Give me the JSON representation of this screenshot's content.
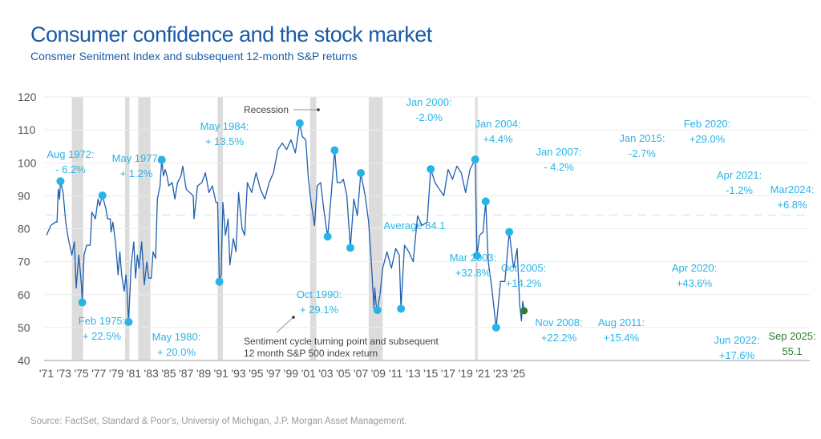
{
  "title": "Consumer confidence and the stock market",
  "subtitle": "Consmer Senitment Index and subsequent 12-month S&P returns",
  "source": "Source: FactSet, Standard & Poor's, Universiy of Michigan, J.P. Morgan Asset Management.",
  "colors": {
    "line": "#1f5fae",
    "accent": "#29b4e8",
    "latest": "#2e7d32",
    "recession": "#dcdcdc",
    "title": "#1a5ba6"
  },
  "chart_data": {
    "type": "line",
    "title": "Consumer confidence and the stock market",
    "ylim": [
      40,
      120
    ],
    "yticks": [
      40,
      50,
      60,
      70,
      80,
      90,
      100,
      110,
      120
    ],
    "xlim": [
      1971,
      2026
    ],
    "xticks": [
      "'71",
      "'73",
      "'75",
      "'77",
      "'79",
      "'81",
      "'83",
      "'85",
      "'87",
      "'89",
      "'91",
      "'93",
      "'95",
      "'97",
      "'99",
      "'01",
      "'03",
      "'05",
      "'07",
      "'09",
      "'11",
      "'13",
      "'15",
      "'17",
      "'19",
      "'21",
      "'23",
      "'25"
    ],
    "grid": true,
    "average": {
      "value": 84.1,
      "label": "Average 84.1"
    },
    "recession_label": "Recession",
    "note": [
      "Sentiment cycle turning point and subsequent",
      "12 month S&P 500 index return"
    ],
    "recessions": [
      [
        1973.9,
        1975.2
      ],
      [
        1980.0,
        1980.5
      ],
      [
        1981.5,
        1982.9
      ],
      [
        1990.6,
        1991.2
      ],
      [
        2001.2,
        2001.9
      ],
      [
        2007.9,
        2009.5
      ],
      [
        2020.1,
        2020.3
      ]
    ],
    "series": [
      {
        "name": "Consumer Sentiment Index",
        "points": [
          [
            1971.0,
            78
          ],
          [
            1971.5,
            81
          ],
          [
            1972.0,
            82
          ],
          [
            1972.2,
            82
          ],
          [
            1972.35,
            92
          ],
          [
            1972.5,
            89
          ],
          [
            1972.6,
            94.4
          ],
          [
            1972.9,
            91
          ],
          [
            1973.2,
            82
          ],
          [
            1973.5,
            77
          ],
          [
            1973.9,
            72
          ],
          [
            1974.2,
            76
          ],
          [
            1974.4,
            62
          ],
          [
            1974.7,
            72
          ],
          [
            1975.0,
            63
          ],
          [
            1975.1,
            57.6
          ],
          [
            1975.3,
            72
          ],
          [
            1975.6,
            75
          ],
          [
            1976.0,
            75
          ],
          [
            1976.2,
            85
          ],
          [
            1976.6,
            83
          ],
          [
            1976.9,
            89
          ],
          [
            1977.1,
            87
          ],
          [
            1977.4,
            90.1
          ],
          [
            1977.8,
            86
          ],
          [
            1978.0,
            83
          ],
          [
            1978.3,
            83
          ],
          [
            1978.4,
            79
          ],
          [
            1978.6,
            82
          ],
          [
            1978.9,
            76
          ],
          [
            1979.0,
            73
          ],
          [
            1979.2,
            66
          ],
          [
            1979.4,
            73
          ],
          [
            1979.6,
            66
          ],
          [
            1979.9,
            61
          ],
          [
            1980.1,
            66
          ],
          [
            1980.2,
            62
          ],
          [
            1980.4,
            51.7
          ],
          [
            1980.7,
            69
          ],
          [
            1981.0,
            76
          ],
          [
            1981.2,
            65
          ],
          [
            1981.4,
            72
          ],
          [
            1981.6,
            68
          ],
          [
            1981.9,
            76
          ],
          [
            1982.2,
            63
          ],
          [
            1982.5,
            70
          ],
          [
            1982.7,
            65
          ],
          [
            1983.0,
            65
          ],
          [
            1983.2,
            73
          ],
          [
            1983.5,
            71
          ],
          [
            1983.7,
            89
          ],
          [
            1984.0,
            93
          ],
          [
            1984.2,
            100.9
          ],
          [
            1984.4,
            96
          ],
          [
            1984.6,
            98
          ],
          [
            1984.8,
            96
          ],
          [
            1985.0,
            93
          ],
          [
            1985.4,
            94
          ],
          [
            1985.7,
            89
          ],
          [
            1986.0,
            94
          ],
          [
            1986.4,
            96
          ],
          [
            1986.6,
            99
          ],
          [
            1987.0,
            92
          ],
          [
            1987.4,
            91
          ],
          [
            1987.8,
            90
          ],
          [
            1987.9,
            83
          ],
          [
            1988.3,
            93
          ],
          [
            1988.8,
            94
          ],
          [
            1989.2,
            97
          ],
          [
            1989.6,
            91
          ],
          [
            1990.0,
            93
          ],
          [
            1990.4,
            88
          ],
          [
            1990.6,
            88
          ],
          [
            1990.8,
            63.9
          ],
          [
            1991.0,
            66
          ],
          [
            1991.2,
            88
          ],
          [
            1991.5,
            78
          ],
          [
            1991.8,
            83
          ],
          [
            1992.0,
            69
          ],
          [
            1992.4,
            77
          ],
          [
            1992.7,
            73
          ],
          [
            1993.0,
            91
          ],
          [
            1993.4,
            80
          ],
          [
            1993.7,
            78
          ],
          [
            1994.0,
            94
          ],
          [
            1994.5,
            91
          ],
          [
            1995.0,
            97
          ],
          [
            1995.5,
            92
          ],
          [
            1996.0,
            89
          ],
          [
            1996.5,
            94
          ],
          [
            1997.0,
            97
          ],
          [
            1997.5,
            104
          ],
          [
            1998.0,
            106
          ],
          [
            1998.5,
            104
          ],
          [
            1999.0,
            107
          ],
          [
            1999.5,
            103
          ],
          [
            2000.0,
            112.0
          ],
          [
            2000.3,
            108
          ],
          [
            2000.7,
            107
          ],
          [
            2001.0,
            95
          ],
          [
            2001.3,
            88
          ],
          [
            2001.7,
            81
          ],
          [
            2002.0,
            93
          ],
          [
            2002.4,
            94
          ],
          [
            2002.8,
            85
          ],
          [
            2003.2,
            77.6
          ],
          [
            2003.6,
            90
          ],
          [
            2004.0,
            103.8
          ],
          [
            2004.3,
            94
          ],
          [
            2004.7,
            94
          ],
          [
            2005.0,
            95
          ],
          [
            2005.4,
            90
          ],
          [
            2005.8,
            74.2
          ],
          [
            2006.2,
            89
          ],
          [
            2006.6,
            84
          ],
          [
            2007.0,
            96.9
          ],
          [
            2007.5,
            90
          ],
          [
            2007.9,
            82
          ],
          [
            2008.2,
            70
          ],
          [
            2008.5,
            56
          ],
          [
            2008.6,
            62
          ],
          [
            2008.75,
            57
          ],
          [
            2008.9,
            55.3
          ],
          [
            2009.2,
            60
          ],
          [
            2009.5,
            68
          ],
          [
            2010.0,
            73
          ],
          [
            2010.5,
            68
          ],
          [
            2011.0,
            74
          ],
          [
            2011.4,
            72
          ],
          [
            2011.6,
            55.7
          ],
          [
            2012.0,
            75
          ],
          [
            2012.5,
            73
          ],
          [
            2013.0,
            70
          ],
          [
            2013.5,
            84
          ],
          [
            2014.0,
            81
          ],
          [
            2014.6,
            82
          ],
          [
            2015.0,
            98.1
          ],
          [
            2015.5,
            94
          ],
          [
            2016.0,
            92
          ],
          [
            2016.5,
            90
          ],
          [
            2017.0,
            98
          ],
          [
            2017.5,
            95
          ],
          [
            2018.0,
            99
          ],
          [
            2018.5,
            97
          ],
          [
            2019.0,
            91
          ],
          [
            2019.5,
            98
          ],
          [
            2020.1,
            101.0
          ],
          [
            2020.3,
            71.8
          ],
          [
            2020.6,
            78
          ],
          [
            2021.0,
            79
          ],
          [
            2021.3,
            88.3
          ],
          [
            2021.6,
            70
          ],
          [
            2022.0,
            62
          ],
          [
            2022.5,
            50.0
          ],
          [
            2023.0,
            64
          ],
          [
            2023.5,
            64
          ],
          [
            2024.0,
            79.0
          ],
          [
            2024.5,
            68
          ],
          [
            2024.9,
            74
          ],
          [
            2025.2,
            57
          ],
          [
            2025.4,
            52
          ],
          [
            2025.55,
            58
          ],
          [
            2025.7,
            55.1
          ]
        ]
      }
    ],
    "annotations": [
      {
        "date": 1972.6,
        "value": 94.4,
        "lines": [
          "Aug 1972:",
          "- 6.2%"
        ]
      },
      {
        "date": 1975.1,
        "value": 57.6,
        "lines": [
          "Feb 1975:",
          "+ 22.5%"
        ]
      },
      {
        "date": 1977.4,
        "value": 90.1,
        "lines": [
          "May 1977:",
          "+ 1.2%"
        ]
      },
      {
        "date": 1980.4,
        "value": 51.7,
        "lines": [
          "May 1980:",
          "+ 20.0%"
        ]
      },
      {
        "date": 1984.2,
        "value": 100.9,
        "lines": [
          "May 1984:",
          "+ 13.5%"
        ]
      },
      {
        "date": 1990.8,
        "value": 63.9,
        "lines": [
          "Oct 1990:",
          "+ 29.1%"
        ]
      },
      {
        "date": 2000.0,
        "value": 112.0,
        "lines": [
          "Jan 2000:",
          "-2.0%"
        ]
      },
      {
        "date": 2003.2,
        "value": 77.6,
        "lines": [
          "Mar 2003:",
          "+32.8%"
        ]
      },
      {
        "date": 2004.0,
        "value": 103.8,
        "lines": [
          "Jan 2004:",
          "+4.4%"
        ]
      },
      {
        "date": 2005.8,
        "value": 74.2,
        "lines": [
          "Oct 2005:",
          "+14.2%"
        ]
      },
      {
        "date": 2007.0,
        "value": 96.9,
        "lines": [
          "Jan 2007:",
          "- 4.2%"
        ]
      },
      {
        "date": 2008.9,
        "value": 55.3,
        "lines": [
          "Nov 2008:",
          "+22.2%"
        ]
      },
      {
        "date": 2011.6,
        "value": 55.7,
        "lines": [
          "Aug 2011:",
          "+15.4%"
        ]
      },
      {
        "date": 2015.0,
        "value": 98.1,
        "lines": [
          "Jan 2015:",
          "-2.7%"
        ]
      },
      {
        "date": 2020.1,
        "value": 101.0,
        "lines": [
          "Feb 2020:",
          "+29.0%"
        ]
      },
      {
        "date": 2020.3,
        "value": 71.8,
        "lines": [
          "Apr 2020:",
          "+43.6%"
        ]
      },
      {
        "date": 2021.3,
        "value": 88.3,
        "lines": [
          "Apr 2021:",
          "-1.2%"
        ]
      },
      {
        "date": 2022.5,
        "value": 50.0,
        "lines": [
          "Jun 2022:",
          "+17.6%"
        ]
      },
      {
        "date": 2024.0,
        "value": 79.0,
        "lines": [
          "Mar2024:",
          "+6.8%"
        ]
      },
      {
        "date": 2025.7,
        "value": 55.1,
        "lines": [
          "Sep 2025:",
          "55.1"
        ],
        "latest": true
      }
    ]
  }
}
